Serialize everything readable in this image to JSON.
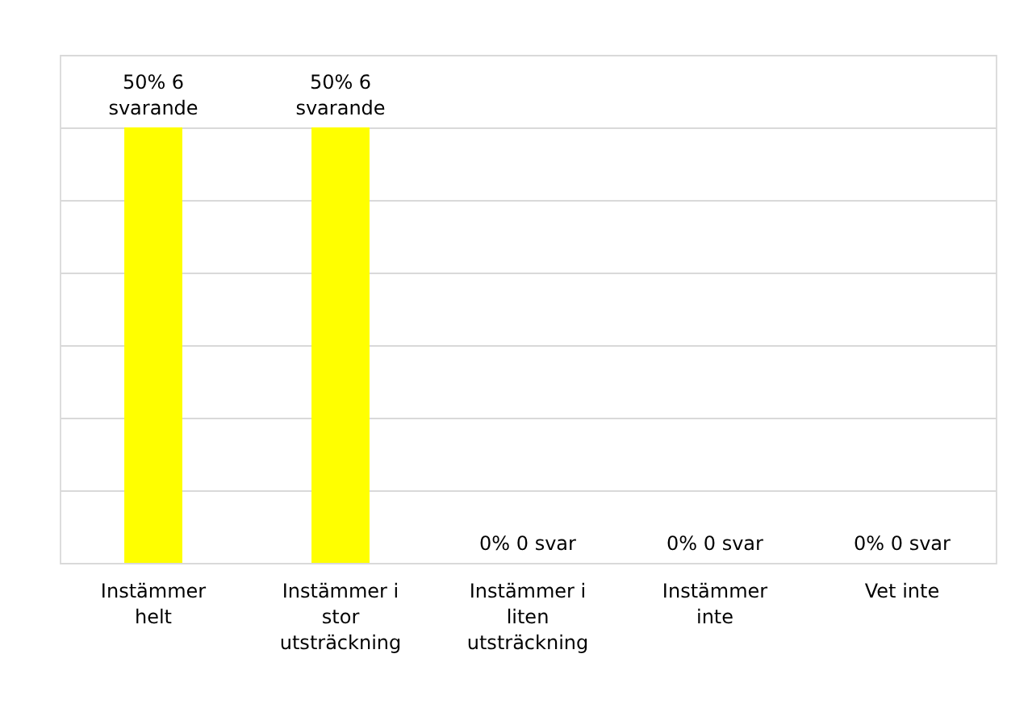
{
  "chart_data": {
    "type": "bar",
    "categories": [
      "Instämmer helt",
      "Instämmer i stor utsträckning",
      "Instämmer i liten utsträckning",
      "Instämmer inte",
      "Vet inte"
    ],
    "values": [
      50,
      50,
      0,
      0,
      0
    ],
    "value_labels": [
      "50% 6 svarande",
      "50% 6 svarande",
      "0% 0 svar",
      "0% 0 svar",
      "0% 0 svar"
    ],
    "color": "#ffff00",
    "grid": "y"
  }
}
